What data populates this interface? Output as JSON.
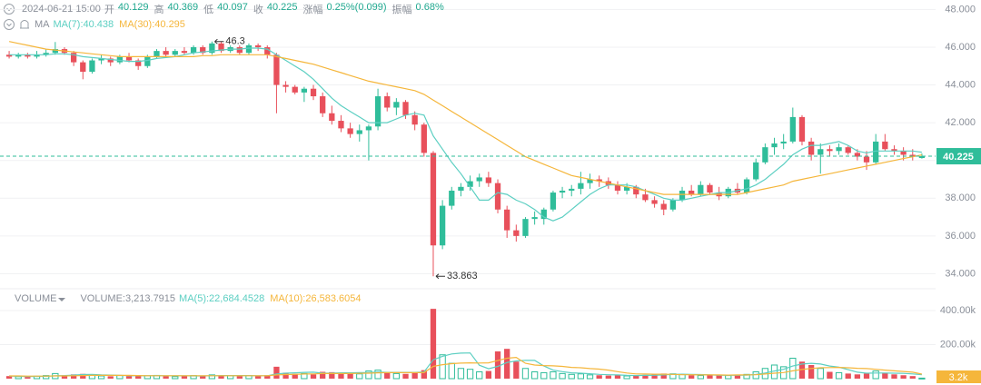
{
  "chart_data": {
    "type": "candlestick",
    "header": {
      "time": "2024-06-21 15:00",
      "fields": [
        {
          "label": "开",
          "value": "40.129"
        },
        {
          "label": "高",
          "value": "40.369"
        },
        {
          "label": "低",
          "value": "40.097"
        },
        {
          "label": "收",
          "value": "40.225"
        },
        {
          "label": "涨幅",
          "value": "0.25%(0.099)"
        },
        {
          "label": "振幅",
          "value": "0.68%"
        }
      ]
    },
    "ma_label": "MA",
    "up_color": "#2fbd9a",
    "down_color": "#e8505b",
    "ylim": [
      33.3,
      48.5
    ],
    "yticks": [
      {
        "value": 34,
        "label": "34.000"
      },
      {
        "value": 36,
        "label": "36.000"
      },
      {
        "value": 38,
        "label": "38.000"
      },
      {
        "value": 40,
        "label": "40.000"
      },
      {
        "value": 42,
        "label": "42.000"
      },
      {
        "value": 44,
        "label": "44.000"
      },
      {
        "value": 46,
        "label": "46.000"
      },
      {
        "value": 48,
        "label": "48.000"
      }
    ],
    "grid": true,
    "candles": [
      [
        45.6,
        45.8,
        45.4,
        45.5
      ],
      [
        45.5,
        45.7,
        45.4,
        45.6
      ],
      [
        45.6,
        45.7,
        45.4,
        45.5
      ],
      [
        45.5,
        45.8,
        45.4,
        45.6
      ],
      [
        45.6,
        45.9,
        45.5,
        45.7
      ],
      [
        45.7,
        46.275,
        45.6,
        45.9
      ],
      [
        45.9,
        46.0,
        45.6,
        45.7
      ],
      [
        45.7,
        45.8,
        45.0,
        45.2
      ],
      [
        45.2,
        45.3,
        44.3,
        44.7
      ],
      [
        44.7,
        45.4,
        44.6,
        45.3
      ],
      [
        45.3,
        45.6,
        45.1,
        45.4
      ],
      [
        45.4,
        45.5,
        45.0,
        45.2
      ],
      [
        45.2,
        45.6,
        45.1,
        45.5
      ],
      [
        45.5,
        45.7,
        45.2,
        45.3
      ],
      [
        45.3,
        45.4,
        44.8,
        45.0
      ],
      [
        45.0,
        45.6,
        44.9,
        45.5
      ],
      [
        45.5,
        45.9,
        45.4,
        45.8
      ],
      [
        45.8,
        46.0,
        45.5,
        45.6
      ],
      [
        45.6,
        45.9,
        45.5,
        45.8
      ],
      [
        45.8,
        46.0,
        45.6,
        45.7
      ],
      [
        45.7,
        46.1,
        45.6,
        46.0
      ],
      [
        46.0,
        46.1,
        45.6,
        45.7
      ],
      [
        45.7,
        46.3,
        45.6,
        46.2
      ],
      [
        46.2,
        46.3,
        45.7,
        45.8
      ],
      [
        45.8,
        46.1,
        45.7,
        46.0
      ],
      [
        46.0,
        46.1,
        45.6,
        45.7
      ],
      [
        45.7,
        46.2,
        45.6,
        46.1
      ],
      [
        46.1,
        46.2,
        45.8,
        46.0
      ],
      [
        46.0,
        46.1,
        45.4,
        45.6
      ],
      [
        45.6,
        45.7,
        42.5,
        44.0
      ],
      [
        44.0,
        44.2,
        43.6,
        43.9
      ],
      [
        43.9,
        44.0,
        43.5,
        43.6
      ],
      [
        43.6,
        43.9,
        43.1,
        43.8
      ],
      [
        43.8,
        44.0,
        43.2,
        43.4
      ],
      [
        43.4,
        43.6,
        42.3,
        42.5
      ],
      [
        42.5,
        42.9,
        41.9,
        42.1
      ],
      [
        42.1,
        42.4,
        41.5,
        41.7
      ],
      [
        41.7,
        42.0,
        41.2,
        41.4
      ],
      [
        41.4,
        41.9,
        41.0,
        41.6
      ],
      [
        41.6,
        41.9,
        40.0,
        41.8
      ],
      [
        41.8,
        43.8,
        41.6,
        43.4
      ],
      [
        43.4,
        43.6,
        42.6,
        42.8
      ],
      [
        42.8,
        43.3,
        42.4,
        43.1
      ],
      [
        43.1,
        43.2,
        42.2,
        42.4
      ],
      [
        42.4,
        42.6,
        41.6,
        41.9
      ],
      [
        41.9,
        42.0,
        40.2,
        40.4
      ],
      [
        40.4,
        40.5,
        33.863,
        35.5
      ],
      [
        35.5,
        37.9,
        35.3,
        37.6
      ],
      [
        37.6,
        38.6,
        37.4,
        38.4
      ],
      [
        38.4,
        38.8,
        38.1,
        38.6
      ],
      [
        38.6,
        39.2,
        38.4,
        38.9
      ],
      [
        38.9,
        39.3,
        38.6,
        39.1
      ],
      [
        39.1,
        39.4,
        38.6,
        38.8
      ],
      [
        38.8,
        39.0,
        37.2,
        37.4
      ],
      [
        37.4,
        37.6,
        35.9,
        36.3
      ],
      [
        36.3,
        36.6,
        35.7,
        36.0
      ],
      [
        36.0,
        37.0,
        35.9,
        36.9
      ],
      [
        36.9,
        37.3,
        36.6,
        37.0
      ],
      [
        36.9,
        37.5,
        36.6,
        37.4
      ],
      [
        37.4,
        38.4,
        37.3,
        38.3
      ],
      [
        38.3,
        38.6,
        38.0,
        38.4
      ],
      [
        38.4,
        38.7,
        38.1,
        38.5
      ],
      [
        38.5,
        39.4,
        38.2,
        38.8
      ],
      [
        38.8,
        39.3,
        38.5,
        39.0
      ],
      [
        39.0,
        39.2,
        38.6,
        38.9
      ],
      [
        38.9,
        39.1,
        38.5,
        38.7
      ],
      [
        38.7,
        38.9,
        38.2,
        38.4
      ],
      [
        38.4,
        38.8,
        38.2,
        38.6
      ],
      [
        38.6,
        38.7,
        38.0,
        38.2
      ],
      [
        38.2,
        38.5,
        37.8,
        37.9
      ],
      [
        37.9,
        38.1,
        37.5,
        37.7
      ],
      [
        37.7,
        37.9,
        37.1,
        37.4
      ],
      [
        37.4,
        38.0,
        37.3,
        37.9
      ],
      [
        37.9,
        38.6,
        37.8,
        38.4
      ],
      [
        38.4,
        38.7,
        38.1,
        38.2
      ],
      [
        38.2,
        38.9,
        38.1,
        38.7
      ],
      [
        38.7,
        38.8,
        38.2,
        38.3
      ],
      [
        38.3,
        38.6,
        37.9,
        38.1
      ],
      [
        38.1,
        38.6,
        38.0,
        38.5
      ],
      [
        38.5,
        38.8,
        38.2,
        38.3
      ],
      [
        38.3,
        39.1,
        38.2,
        39.0
      ],
      [
        39.0,
        40.1,
        38.9,
        39.9
      ],
      [
        39.9,
        40.9,
        39.8,
        40.7
      ],
      [
        40.7,
        41.2,
        40.3,
        40.9
      ],
      [
        40.9,
        41.4,
        40.6,
        41.0
      ],
      [
        41.0,
        42.8,
        40.9,
        42.3
      ],
      [
        42.3,
        42.4,
        40.8,
        41.0
      ],
      [
        41.0,
        41.2,
        40.0,
        40.3
      ],
      [
        40.3,
        40.9,
        39.3,
        40.6
      ],
      [
        40.6,
        40.8,
        40.2,
        40.5
      ],
      [
        40.5,
        40.9,
        40.3,
        40.7
      ],
      [
        40.7,
        40.8,
        40.3,
        40.4
      ],
      [
        40.4,
        40.6,
        40.0,
        40.2
      ],
      [
        40.2,
        40.5,
        39.5,
        39.9
      ],
      [
        39.9,
        41.4,
        39.8,
        41.0
      ],
      [
        41.0,
        41.4,
        40.5,
        40.6
      ],
      [
        40.6,
        40.8,
        40.3,
        40.5
      ],
      [
        40.5,
        40.7,
        40.0,
        40.3
      ],
      [
        40.3,
        40.6,
        40.0,
        40.2
      ],
      [
        40.129,
        40.369,
        40.097,
        40.225
      ]
    ],
    "series": [
      {
        "name": "MA(7):40.438",
        "color": "#5ccfc2",
        "values": [
          45.6,
          45.6,
          45.6,
          45.6,
          45.6,
          45.65,
          45.65,
          45.6,
          45.5,
          45.45,
          45.4,
          45.35,
          45.3,
          45.25,
          45.25,
          45.3,
          45.4,
          45.45,
          45.5,
          45.6,
          45.7,
          45.75,
          45.8,
          45.85,
          45.9,
          45.9,
          45.95,
          45.95,
          45.9,
          45.6,
          45.3,
          45.0,
          44.7,
          44.3,
          43.8,
          43.3,
          42.9,
          42.6,
          42.3,
          42.0,
          42.0,
          42.0,
          42.2,
          42.4,
          42.5,
          42.4,
          41.3,
          40.6,
          39.9,
          39.3,
          38.6,
          37.9,
          37.9,
          38.3,
          38.2,
          37.9,
          37.7,
          37.4,
          37.0,
          36.8,
          37.0,
          37.4,
          37.8,
          38.2,
          38.5,
          38.7,
          38.7,
          38.7,
          38.6,
          38.4,
          38.2,
          38.0,
          37.9,
          37.9,
          38.0,
          38.1,
          38.2,
          38.3,
          38.3,
          38.4,
          38.5,
          38.7,
          39.0,
          39.4,
          39.8,
          40.3,
          40.6,
          40.8,
          40.8,
          40.9,
          41.0,
          40.8,
          40.5,
          40.4,
          40.5,
          40.5,
          40.5,
          40.5,
          40.5,
          40.438
        ]
      },
      {
        "name": "MA(30):40.295",
        "color": "#f5b63b",
        "values": [
          46.3,
          46.2,
          46.1,
          46.0,
          45.9,
          45.85,
          45.8,
          45.75,
          45.7,
          45.65,
          45.6,
          45.55,
          45.5,
          45.5,
          45.5,
          45.5,
          45.5,
          45.5,
          45.5,
          45.5,
          45.5,
          45.55,
          45.55,
          45.6,
          45.6,
          45.6,
          45.6,
          45.6,
          45.6,
          45.5,
          45.4,
          45.3,
          45.2,
          45.1,
          44.95,
          44.8,
          44.65,
          44.5,
          44.35,
          44.2,
          44.1,
          44.0,
          43.9,
          43.8,
          43.7,
          43.5,
          43.2,
          42.9,
          42.6,
          42.3,
          42.0,
          41.7,
          41.4,
          41.1,
          40.8,
          40.5,
          40.2,
          40.0,
          39.8,
          39.6,
          39.4,
          39.2,
          39.1,
          39.0,
          38.9,
          38.8,
          38.7,
          38.6,
          38.5,
          38.4,
          38.3,
          38.2,
          38.2,
          38.2,
          38.2,
          38.2,
          38.2,
          38.2,
          38.2,
          38.2,
          38.3,
          38.4,
          38.5,
          38.6,
          38.7,
          38.9,
          39.0,
          39.1,
          39.2,
          39.3,
          39.4,
          39.5,
          39.6,
          39.7,
          39.8,
          39.9,
          40.0,
          40.1,
          40.2,
          40.295
        ]
      }
    ],
    "volume": {
      "label": "VOLUME",
      "legend": "VOLUME:3,213.7915",
      "last_label": "3.2k",
      "ylim": [
        0,
        464000
      ],
      "yticks": [
        {
          "value": 200000,
          "label": "200.00k"
        },
        {
          "value": 400000,
          "label": "400.00k"
        }
      ],
      "values": [
        15000,
        12000,
        10000,
        14000,
        18000,
        30000,
        20000,
        25000,
        28000,
        22000,
        16000,
        14000,
        18000,
        15000,
        20000,
        17000,
        19000,
        14000,
        12000,
        15000,
        18000,
        16000,
        22000,
        19000,
        17000,
        15000,
        18000,
        16000,
        20000,
        70000,
        35000,
        28000,
        30000,
        25000,
        40000,
        38000,
        35000,
        30000,
        28000,
        45000,
        50000,
        32000,
        30000,
        28000,
        35000,
        50000,
        410000,
        140000,
        90000,
        60000,
        55000,
        40000,
        45000,
        160000,
        175000,
        100000,
        60000,
        40000,
        35000,
        40000,
        30000,
        25000,
        28000,
        22000,
        20000,
        18000,
        20000,
        16000,
        18000,
        22000,
        25000,
        30000,
        28000,
        24000,
        20000,
        18000,
        22000,
        20000,
        18000,
        22000,
        25000,
        40000,
        60000,
        80000,
        70000,
        120000,
        100000,
        80000,
        60000,
        40000,
        35000,
        30000,
        25000,
        30000,
        45000,
        35000,
        25000,
        20000,
        15000,
        3214
      ],
      "series": [
        {
          "name": "MA(5):22,684.4528",
          "color": "#5ccfc2",
          "values": [
            15000,
            14000,
            13000,
            13500,
            14000,
            17000,
            18000,
            21000,
            24000,
            25000,
            22000,
            21000,
            20000,
            17000,
            17000,
            17000,
            18000,
            17000,
            17000,
            17000,
            16000,
            16000,
            17000,
            18000,
            18000,
            18000,
            18000,
            17000,
            17000,
            28000,
            32000,
            34000,
            37000,
            38000,
            32000,
            32000,
            34000,
            34000,
            35000,
            35000,
            39000,
            37000,
            37000,
            37000,
            37000,
            39000,
            111000,
            131000,
            145000,
            150000,
            151000,
            79000,
            58000,
            72000,
            95000,
            104000,
            108000,
            107000,
            74000,
            50000,
            41000,
            34000,
            32000,
            29000,
            25000,
            23000,
            22000,
            19000,
            18000,
            19000,
            20000,
            22000,
            25000,
            26000,
            25000,
            24000,
            22000,
            20000,
            20000,
            20000,
            21000,
            25000,
            33000,
            45000,
            55000,
            74000,
            86000,
            90000,
            86000,
            74000,
            67000,
            53000,
            38000,
            32000,
            33000,
            33000,
            32000,
            31000,
            28000,
            22685
          ]
        },
        {
          "name": "MA(10):26,583.6054",
          "color": "#f5b63b",
          "values": [
            16000,
            16000,
            15000,
            15000,
            15000,
            16000,
            16000,
            17000,
            18000,
            19000,
            19000,
            19000,
            19000,
            19000,
            18000,
            17000,
            17000,
            17000,
            17000,
            17000,
            17000,
            17000,
            17000,
            17000,
            17000,
            17000,
            17000,
            17000,
            17000,
            22000,
            24000,
            25000,
            27000,
            28000,
            30000,
            30000,
            30000,
            30000,
            31000,
            32000,
            34000,
            35000,
            35000,
            35000,
            35000,
            35000,
            72000,
            82000,
            88000,
            91000,
            93000,
            92000,
            93000,
            106000,
            120000,
            125000,
            90000,
            80000,
            77000,
            75000,
            72000,
            66000,
            64000,
            59000,
            56000,
            50000,
            41000,
            33000,
            28000,
            27000,
            26000,
            26000,
            25000,
            23000,
            23000,
            22000,
            22000,
            22000,
            21000,
            22000,
            22000,
            23000,
            27000,
            32000,
            36000,
            46000,
            54000,
            60000,
            64000,
            65000,
            66000,
            64000,
            61000,
            59000,
            55000,
            50000,
            46000,
            42000,
            38000,
            26584
          ]
        }
      ]
    }
  }
}
